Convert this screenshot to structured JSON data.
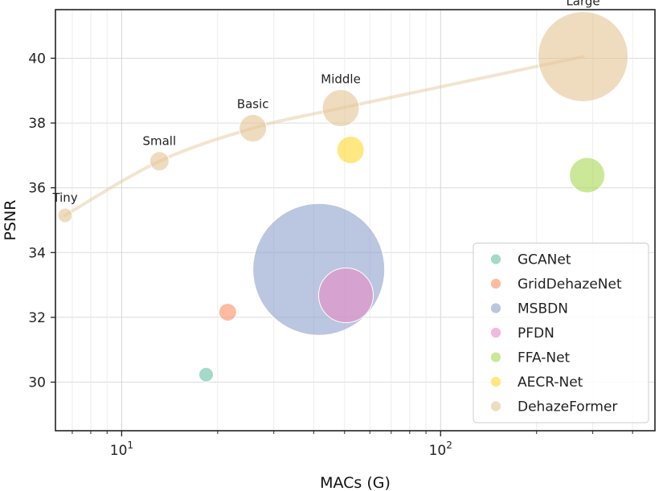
{
  "chart_data": {
    "type": "scatter",
    "xlabel": "MACs (G)",
    "ylabel": "PSNR",
    "xscale": "log",
    "xlim": [
      6.2,
      470
    ],
    "ylim": [
      28.5,
      41.5
    ],
    "xticks": [
      10,
      100
    ],
    "xtick_labels": [
      "10^1",
      "10^2"
    ],
    "yticks": [
      30,
      32,
      34,
      36,
      38,
      40
    ],
    "grid": true,
    "legend_position": "lower-right",
    "series": [
      {
        "name": "GCANet",
        "color": "#66c2a5",
        "points": [
          {
            "x": 18.4,
            "y": 30.23,
            "size": 9
          }
        ]
      },
      {
        "name": "GridDehazeNet",
        "color": "#fc8d62",
        "points": [
          {
            "x": 21.5,
            "y": 32.16,
            "size": 11
          }
        ]
      },
      {
        "name": "MSBDN",
        "color": "#8da0cb",
        "points": [
          {
            "x": 41.5,
            "y": 33.48,
            "size": 82
          }
        ]
      },
      {
        "name": "PFDN",
        "color": "#e78ac3",
        "points": [
          {
            "x": 50.5,
            "y": 32.68,
            "size": 34
          }
        ]
      },
      {
        "name": "FFA-Net",
        "color": "#a6d854",
        "points": [
          {
            "x": 288,
            "y": 36.39,
            "size": 22
          }
        ]
      },
      {
        "name": "AECR-Net",
        "color": "#ffd92f",
        "points": [
          {
            "x": 52.2,
            "y": 37.17,
            "size": 17
          }
        ]
      },
      {
        "name": "DehazeFormer",
        "color": "#e5c494",
        "points": [
          {
            "x": 6.65,
            "y": 35.15,
            "size": 9,
            "label": "Tiny"
          },
          {
            "x": 13.13,
            "y": 36.82,
            "size": 12,
            "label": "Small"
          },
          {
            "x": 25.79,
            "y": 37.84,
            "size": 17,
            "label": "Basic"
          },
          {
            "x": 48.64,
            "y": 38.46,
            "size": 23,
            "label": "Middle"
          },
          {
            "x": 279.7,
            "y": 40.05,
            "size": 56,
            "label": "Large"
          }
        ]
      }
    ]
  }
}
